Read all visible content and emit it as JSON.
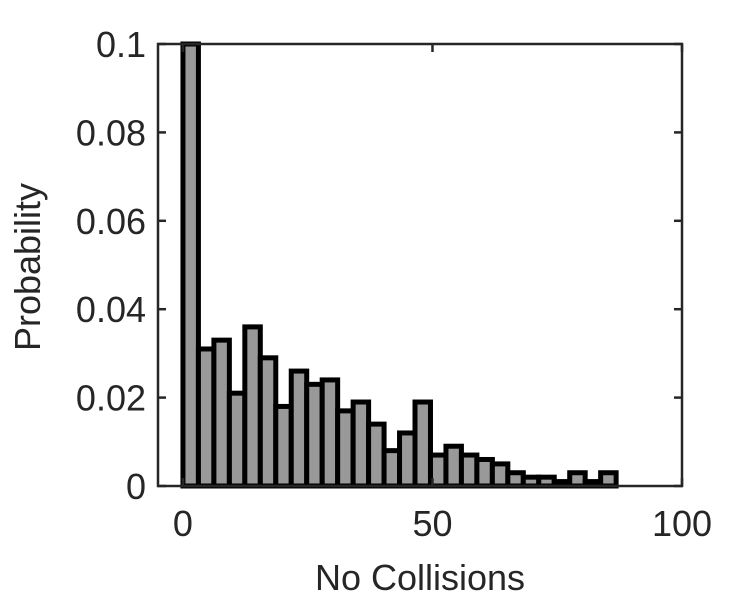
{
  "chart_data": {
    "type": "bar",
    "title": "",
    "xlabel": "No Collisions",
    "ylabel": "Probability",
    "xlim": [
      -5,
      100
    ],
    "ylim": [
      0,
      0.1
    ],
    "bin_width": 3.1,
    "bin_starts": [
      0,
      3.1,
      6.2,
      9.3,
      12.4,
      15.5,
      18.6,
      21.7,
      24.8,
      27.9,
      31,
      34.1,
      37.2,
      40.3,
      43.4,
      46.5,
      49.6,
      52.7,
      55.8,
      58.9,
      62,
      65.1,
      68.2,
      71.3,
      74.4,
      77.5,
      80.6,
      83.7,
      86.8,
      89.9,
      93,
      96.1
    ],
    "values": [
      0.1,
      0.031,
      0.033,
      0.021,
      0.036,
      0.029,
      0.018,
      0.026,
      0.023,
      0.024,
      0.017,
      0.019,
      0.014,
      0.008,
      0.012,
      0.019,
      0.007,
      0.009,
      0.007,
      0.006,
      0.005,
      0.003,
      0.002,
      0.002,
      0.001,
      0.003,
      0.001,
      0.003,
      0.0,
      0.0,
      0.0,
      0.0
    ],
    "x_ticks": [
      0,
      50,
      100
    ],
    "x_tick_labels": [
      "0",
      "50",
      "100"
    ],
    "y_ticks": [
      0,
      0.02,
      0.04,
      0.06,
      0.08,
      0.1
    ],
    "y_tick_labels": [
      "0",
      "0.02",
      "0.04",
      "0.06",
      "0.08",
      "0.1"
    ],
    "bar_fill": "#999999",
    "bar_edge": "#000000",
    "axis_color": "#262626",
    "grid": false,
    "legend": "none"
  }
}
